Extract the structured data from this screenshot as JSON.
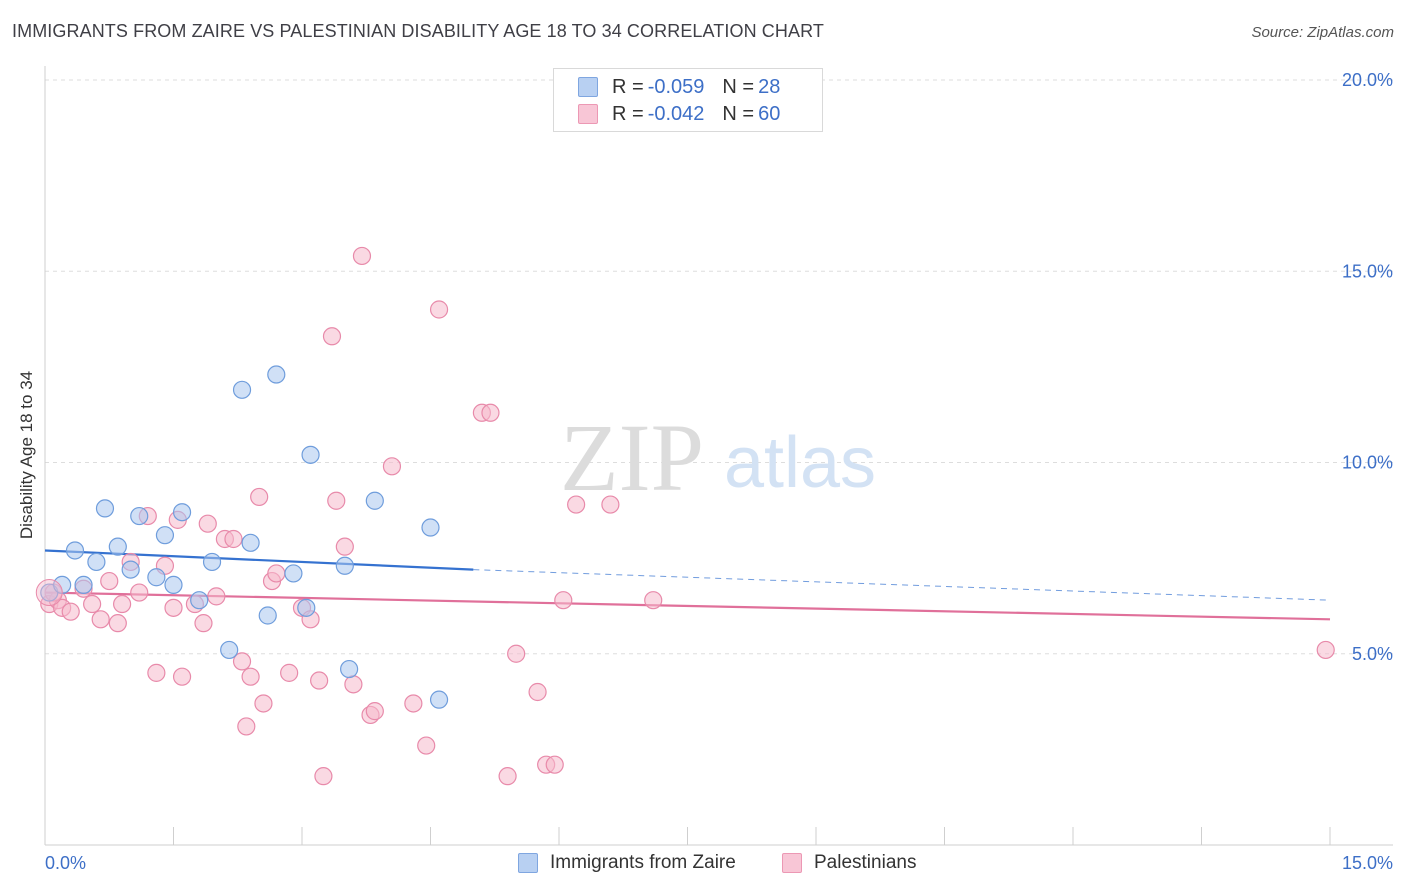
{
  "header": {
    "title": "IMMIGRANTS FROM ZAIRE VS PALESTINIAN DISABILITY AGE 18 TO 34 CORRELATION CHART",
    "source": "Source: ZipAtlas.com"
  },
  "watermark": {
    "zip": "ZIP",
    "atlas": "atlas"
  },
  "legend_top": [
    {
      "r_label": "R =",
      "r_value": "-0.059",
      "n_label": "N =",
      "n_value": "28",
      "fill": "#b8d0f2",
      "stroke": "#7fa6e0"
    },
    {
      "r_label": "R =",
      "r_value": "-0.042",
      "n_label": "N =",
      "n_value": "60",
      "fill": "#f8c6d6",
      "stroke": "#ec98b4"
    }
  ],
  "legend_bottom": [
    {
      "label": "Immigrants from Zaire",
      "fill": "#b8d0f2",
      "stroke": "#7fa6e0"
    },
    {
      "label": "Palestinians",
      "fill": "#f8c6d6",
      "stroke": "#ec98b4"
    }
  ],
  "colors": {
    "zaire_fill": "#a9c6ee",
    "zaire_stroke": "#6f9ddc",
    "zaire_line": "#3572d0",
    "pal_fill": "#f6b9cc",
    "pal_stroke": "#e88aaa",
    "pal_line": "#e0709a",
    "grid": "#dddddd",
    "axis_tick_label": "#3d6fc7"
  },
  "chart_data": {
    "type": "scatter",
    "title": "IMMIGRANTS FROM ZAIRE VS PALESTINIAN DISABILITY AGE 18 TO 34 CORRELATION CHART",
    "xlabel": "",
    "ylabel": "Disability Age 18 to 34",
    "xlim": [
      0,
      15
    ],
    "ylim": [
      0,
      20
    ],
    "x_tick_labels": [
      {
        "value": 0,
        "label": "0.0%"
      },
      {
        "value": 15,
        "label": "15.0%"
      }
    ],
    "y_tick_labels": [
      {
        "value": 5,
        "label": "5.0%"
      },
      {
        "value": 10,
        "label": "10.0%"
      },
      {
        "value": 15,
        "label": "15.0%"
      },
      {
        "value": 20,
        "label": "20.0%"
      }
    ],
    "grid": {
      "horizontal": true,
      "vertical": false,
      "style": "dashed"
    },
    "legend_placement": "top-center",
    "series": [
      {
        "name": "Immigrants from Zaire",
        "stats": {
          "R": -0.059,
          "N": 28
        },
        "trend": {
          "x0": 0,
          "y0": 7.7,
          "x1": 5,
          "y1": 7.2,
          "dashed_to_x": 15,
          "dashed_to_y": 6.4
        },
        "points": [
          [
            0.05,
            6.6
          ],
          [
            0.2,
            6.8
          ],
          [
            0.35,
            7.7
          ],
          [
            0.45,
            6.8
          ],
          [
            0.6,
            7.4
          ],
          [
            0.7,
            8.8
          ],
          [
            0.85,
            7.8
          ],
          [
            1.0,
            7.2
          ],
          [
            1.1,
            8.6
          ],
          [
            1.3,
            7.0
          ],
          [
            1.4,
            8.1
          ],
          [
            1.5,
            6.8
          ],
          [
            1.6,
            8.7
          ],
          [
            1.8,
            6.4
          ],
          [
            1.95,
            7.4
          ],
          [
            2.15,
            5.1
          ],
          [
            2.3,
            11.9
          ],
          [
            2.4,
            7.9
          ],
          [
            2.6,
            6.0
          ],
          [
            2.7,
            12.3
          ],
          [
            2.9,
            7.1
          ],
          [
            3.05,
            6.2
          ],
          [
            3.1,
            10.2
          ],
          [
            3.5,
            7.3
          ],
          [
            3.55,
            4.6
          ],
          [
            3.85,
            9.0
          ],
          [
            4.5,
            8.3
          ],
          [
            4.6,
            3.8
          ]
        ]
      },
      {
        "name": "Palestinians",
        "stats": {
          "R": -0.042,
          "N": 60
        },
        "trend": {
          "x0": 0,
          "y0": 6.6,
          "x1": 15,
          "y1": 5.9
        },
        "points": [
          [
            0.05,
            6.3
          ],
          [
            0.15,
            6.4
          ],
          [
            0.2,
            6.2
          ],
          [
            0.3,
            6.1
          ],
          [
            0.45,
            6.7
          ],
          [
            0.55,
            6.3
          ],
          [
            0.65,
            5.9
          ],
          [
            0.75,
            6.9
          ],
          [
            0.85,
            5.8
          ],
          [
            0.9,
            6.3
          ],
          [
            1.0,
            7.4
          ],
          [
            1.1,
            6.6
          ],
          [
            1.2,
            8.6
          ],
          [
            1.3,
            4.5
          ],
          [
            1.4,
            7.3
          ],
          [
            1.5,
            6.2
          ],
          [
            1.55,
            8.5
          ],
          [
            1.6,
            4.4
          ],
          [
            1.75,
            6.3
          ],
          [
            1.85,
            5.8
          ],
          [
            1.9,
            8.4
          ],
          [
            2.0,
            6.5
          ],
          [
            2.1,
            8.0
          ],
          [
            2.2,
            8.0
          ],
          [
            2.3,
            4.8
          ],
          [
            2.35,
            3.1
          ],
          [
            2.4,
            4.4
          ],
          [
            2.5,
            9.1
          ],
          [
            2.55,
            3.7
          ],
          [
            2.65,
            6.9
          ],
          [
            2.7,
            7.1
          ],
          [
            2.85,
            4.5
          ],
          [
            3.0,
            6.2
          ],
          [
            3.1,
            5.9
          ],
          [
            3.2,
            4.3
          ],
          [
            3.25,
            1.8
          ],
          [
            3.35,
            13.3
          ],
          [
            3.4,
            9.0
          ],
          [
            3.5,
            7.8
          ],
          [
            3.6,
            4.2
          ],
          [
            3.7,
            15.4
          ],
          [
            3.8,
            3.4
          ],
          [
            3.85,
            3.5
          ],
          [
            4.05,
            9.9
          ],
          [
            4.3,
            3.7
          ],
          [
            4.45,
            2.6
          ],
          [
            4.6,
            14.0
          ],
          [
            5.1,
            11.3
          ],
          [
            5.2,
            11.3
          ],
          [
            5.4,
            1.8
          ],
          [
            5.5,
            5.0
          ],
          [
            5.75,
            4.0
          ],
          [
            5.85,
            2.1
          ],
          [
            5.95,
            2.1
          ],
          [
            6.05,
            6.4
          ],
          [
            6.2,
            8.9
          ],
          [
            6.6,
            8.9
          ],
          [
            7.1,
            6.4
          ],
          [
            14.95,
            5.1
          ],
          [
            0.1,
            6.6
          ]
        ]
      }
    ]
  }
}
